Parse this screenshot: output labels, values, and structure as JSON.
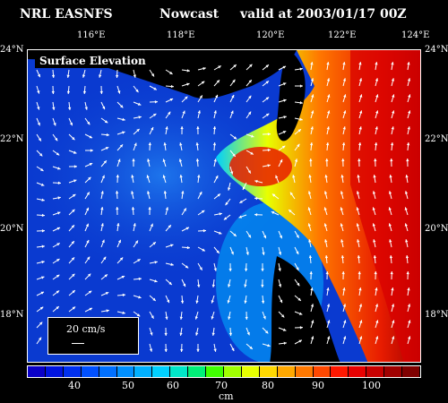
{
  "header": {
    "source": "NRL EASNFS",
    "run": "Nowcast",
    "valid": "valid at 2003/01/17 00Z"
  },
  "map": {
    "panel_label": "Surface Elevation",
    "lon_ticks": [
      "116°E",
      "118°E",
      "120°E",
      "122°E",
      "124°E"
    ],
    "lat_ticks": [
      "24°N",
      "22°N",
      "20°N",
      "18°N"
    ],
    "scale_label": "20 cm/s",
    "icons": [
      "velocity-vector-field",
      "landmass-taiwan",
      "landmass-luzon",
      "coastline-china"
    ],
    "colors": {
      "low": "#0a3ad0",
      "mid": "#2a9cff",
      "high": "#e81c00",
      "land": "#000000",
      "vectors": "#ffffff"
    }
  },
  "colorbar": {
    "unit": "cm",
    "tick_labels": [
      "40",
      "50",
      "60",
      "70",
      "80",
      "90",
      "100"
    ],
    "colors": [
      "#0a00c8",
      "#0014e0",
      "#0030f0",
      "#0050ff",
      "#0070ff",
      "#0090ff",
      "#00b0ff",
      "#00d0ff",
      "#00e8c8",
      "#00f078",
      "#40ff00",
      "#a0ff00",
      "#e8ff00",
      "#ffd800",
      "#ffa800",
      "#ff7800",
      "#ff4800",
      "#ff1800",
      "#e80000",
      "#c80000",
      "#a00000",
      "#800000"
    ]
  }
}
